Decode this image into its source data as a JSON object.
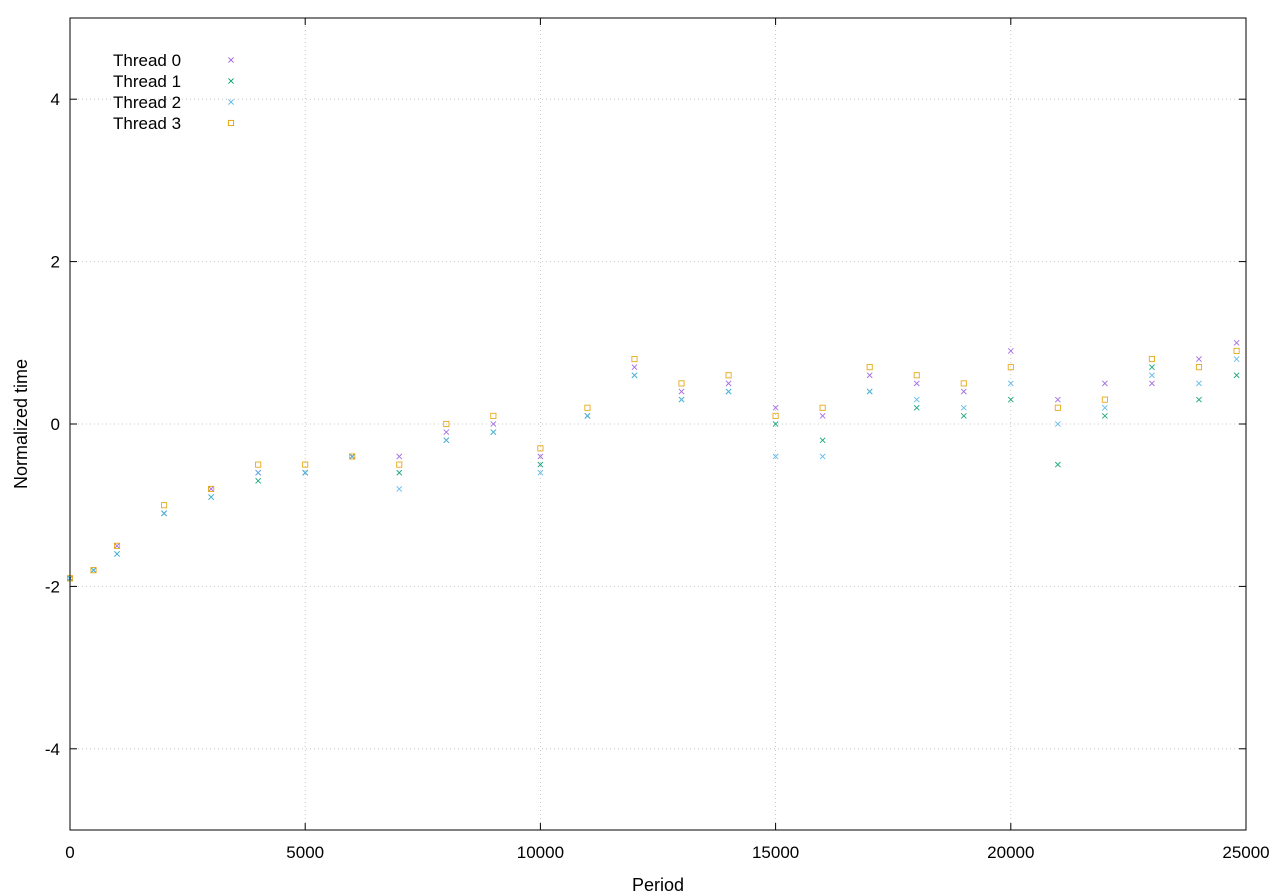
{
  "chart_data": {
    "type": "scatter",
    "title": "",
    "xlabel": "Period",
    "ylabel": "Normalized time",
    "xlim": [
      0,
      25000
    ],
    "ylim": [
      -5,
      5
    ],
    "x_ticks": [
      0,
      5000,
      10000,
      15000,
      20000,
      25000
    ],
    "x_tick_labels": [
      "0",
      "5000",
      "10000",
      "15000",
      "20000",
      "25000"
    ],
    "y_ticks": [
      -4,
      -2,
      0,
      2,
      4
    ],
    "y_tick_labels": [
      "-4",
      "-2",
      "0",
      "2",
      "4"
    ],
    "grid": true,
    "legend_position": "top-left",
    "series": [
      {
        "name": "Thread 0",
        "color": "#9b5fe0",
        "marker": "cross",
        "x": [
          0,
          500,
          1000,
          2000,
          3000,
          4000,
          5000,
          6000,
          7000,
          8000,
          9000,
          10000,
          11000,
          12000,
          13000,
          14000,
          15000,
          16000,
          17000,
          18000,
          19000,
          20000,
          21000,
          22000,
          23000,
          24000,
          24800
        ],
        "y": [
          -1.9,
          -1.8,
          -1.5,
          -1.1,
          -0.8,
          -0.6,
          -0.6,
          -0.4,
          -0.4,
          -0.1,
          0.0,
          -0.4,
          0.1,
          0.7,
          0.4,
          0.5,
          0.2,
          0.1,
          0.6,
          0.5,
          0.4,
          0.9,
          0.3,
          0.5,
          0.5,
          0.8,
          1.0
        ]
      },
      {
        "name": "Thread 1",
        "color": "#009e73",
        "marker": "cross",
        "x": [
          0,
          500,
          1000,
          2000,
          3000,
          4000,
          5000,
          6000,
          7000,
          8000,
          9000,
          10000,
          11000,
          12000,
          13000,
          14000,
          15000,
          16000,
          17000,
          18000,
          19000,
          20000,
          21000,
          22000,
          23000,
          24000,
          24800
        ],
        "y": [
          -1.9,
          -1.8,
          -1.6,
          -1.1,
          -0.9,
          -0.7,
          -0.6,
          -0.4,
          -0.6,
          -0.2,
          -0.1,
          -0.5,
          0.1,
          0.6,
          0.3,
          0.4,
          0.0,
          -0.2,
          0.4,
          0.2,
          0.1,
          0.3,
          -0.5,
          0.1,
          0.7,
          0.3,
          0.6
        ]
      },
      {
        "name": "Thread 2",
        "color": "#56b4e9",
        "marker": "cross",
        "x": [
          0,
          500,
          1000,
          2000,
          3000,
          4000,
          5000,
          6000,
          7000,
          8000,
          9000,
          10000,
          11000,
          12000,
          13000,
          14000,
          15000,
          16000,
          17000,
          18000,
          19000,
          20000,
          21000,
          22000,
          23000,
          24000,
          24800
        ],
        "y": [
          -1.9,
          -1.8,
          -1.6,
          -1.1,
          -0.9,
          -0.6,
          -0.6,
          -0.4,
          -0.8,
          -0.2,
          -0.1,
          -0.6,
          0.1,
          0.6,
          0.3,
          0.4,
          -0.4,
          -0.4,
          0.4,
          0.3,
          0.2,
          0.5,
          0.0,
          0.2,
          0.6,
          0.5,
          0.8
        ]
      },
      {
        "name": "Thread 3",
        "color": "#e69f00",
        "marker": "square",
        "x": [
          0,
          500,
          1000,
          2000,
          3000,
          4000,
          5000,
          6000,
          7000,
          8000,
          9000,
          10000,
          11000,
          12000,
          13000,
          14000,
          15000,
          16000,
          17000,
          18000,
          19000,
          20000,
          21000,
          22000,
          23000,
          24000,
          24800
        ],
        "y": [
          -1.9,
          -1.8,
          -1.5,
          -1.0,
          -0.8,
          -0.5,
          -0.5,
          -0.4,
          -0.5,
          0.0,
          0.1,
          -0.3,
          0.2,
          0.8,
          0.5,
          0.6,
          0.1,
          0.2,
          0.7,
          0.6,
          0.5,
          0.7,
          0.2,
          0.3,
          0.8,
          0.7,
          0.9
        ]
      }
    ]
  }
}
